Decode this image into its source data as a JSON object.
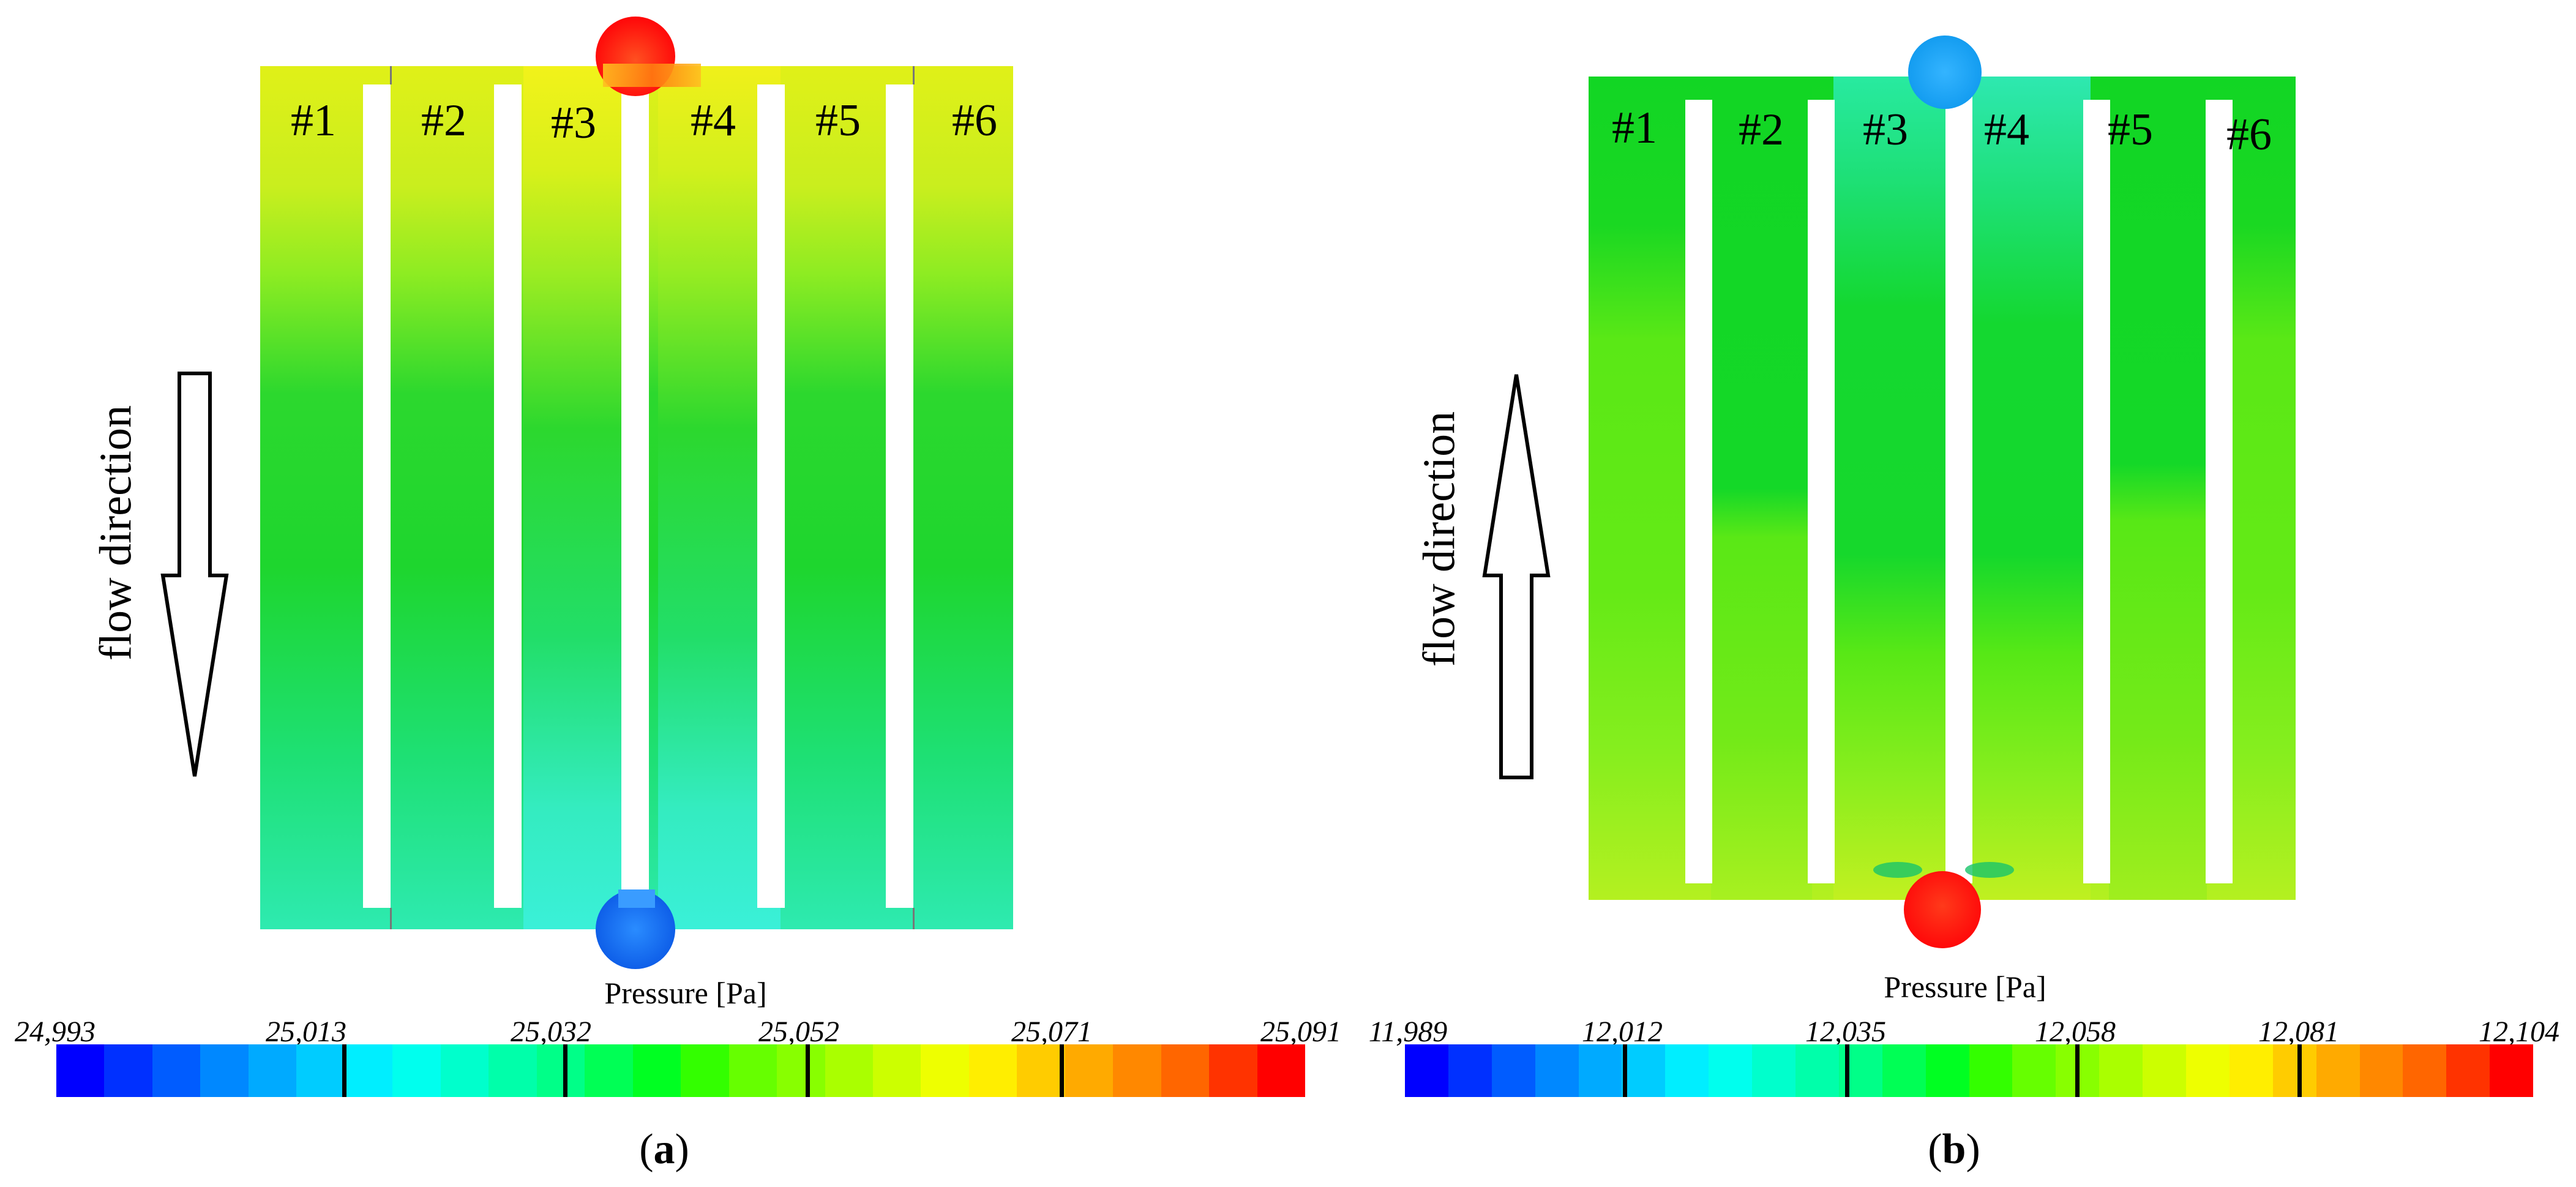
{
  "figure": {
    "panels": [
      {
        "id": "a",
        "caption_open": "(",
        "caption_letter": "a",
        "caption_close": ")",
        "flow_label": "flow direction",
        "flow_arrow": "down",
        "channels": [
          "#1",
          "#2",
          "#3",
          "#4",
          "#5",
          "#6"
        ],
        "inlet_color": "#ff1a10",
        "outlet_color": "#1a78f0",
        "colorbar": {
          "title": "Pressure [Pa]",
          "min": 24993,
          "max": 25091,
          "tick_labels": [
            "24,993",
            "25,013",
            "25,032",
            "25,052",
            "25,071",
            "25,091"
          ],
          "tick_values": [
            24993,
            25013,
            25032,
            25052,
            25071,
            25091
          ]
        }
      },
      {
        "id": "b",
        "caption_open": "(",
        "caption_letter": "b",
        "caption_close": ")",
        "flow_label": "flow direction",
        "flow_arrow": "up",
        "channels": [
          "#1",
          "#2",
          "#3",
          "#4",
          "#5",
          "#6"
        ],
        "inlet_color": "#ff1a10",
        "outlet_color": "#1aa4f0",
        "colorbar": {
          "title": "Pressure [Pa]",
          "min": 11989,
          "max": 12104,
          "tick_labels": [
            "11,989",
            "12,012",
            "12,035",
            "12,058",
            "12,081",
            "12,104"
          ],
          "tick_values": [
            11989,
            12012,
            12035,
            12058,
            12081,
            12104
          ]
        }
      }
    ],
    "colormap": [
      "#0000ff",
      "#0030ff",
      "#005cff",
      "#0088ff",
      "#00aaff",
      "#00ccff",
      "#00eeff",
      "#00ffee",
      "#00ffcc",
      "#00ffaa",
      "#00ff88",
      "#00ff55",
      "#00ff22",
      "#33ff00",
      "#66ff00",
      "#88ff00",
      "#aaff00",
      "#ccff00",
      "#eeff00",
      "#ffee00",
      "#ffcc00",
      "#ffaa00",
      "#ff8800",
      "#ff6600",
      "#ff3300",
      "#ff0000"
    ],
    "colors": {
      "a_top": "#d6ee22",
      "a_mid": "#1ed62e",
      "a_bottom": "#2fe8b0",
      "b_top": "#12d624",
      "b_mid": "#4ee612",
      "b_bottom": "#86ee1e"
    }
  }
}
